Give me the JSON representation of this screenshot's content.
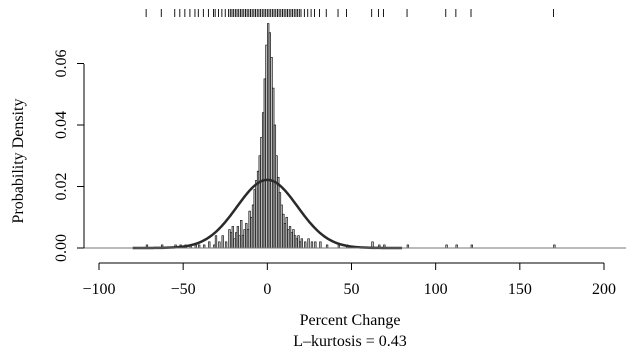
{
  "chart_data": {
    "type": "histogram",
    "xlabel": "Percent Change",
    "subtitle": "L–kurtosis = 0.43",
    "ylabel": "Probability Density",
    "xlim": [
      -110,
      210
    ],
    "ylim": [
      -0.002,
      0.076
    ],
    "xticks": [
      -100,
      -50,
      0,
      50,
      100,
      150,
      200
    ],
    "xtick_labels": [
      "−100",
      "−50",
      "0",
      "50",
      "100",
      "150",
      "200"
    ],
    "yticks": [
      0.0,
      0.02,
      0.04,
      0.06
    ],
    "ytick_labels": [
      "0.00",
      "0.02",
      "0.04",
      "0.06"
    ],
    "grid": false,
    "histogram": {
      "bin_width": 1,
      "bins": [
        [
          -72,
          0.001
        ],
        [
          -63,
          0.001
        ],
        [
          -55,
          0.001
        ],
        [
          -52,
          0.001
        ],
        [
          -49,
          0.001
        ],
        [
          -46,
          0.001
        ],
        [
          -43,
          0.001
        ],
        [
          -41,
          0.001
        ],
        [
          -38,
          0.001
        ],
        [
          -35,
          0.002
        ],
        [
          -32,
          0.001
        ],
        [
          -31,
          0.004
        ],
        [
          -29,
          0.002
        ],
        [
          -27,
          0.004
        ],
        [
          -25,
          0.002
        ],
        [
          -23,
          0.006
        ],
        [
          -22,
          0.005
        ],
        [
          -21,
          0.007
        ],
        [
          -20,
          0.003
        ],
        [
          -19,
          0.005
        ],
        [
          -18,
          0.007
        ],
        [
          -17,
          0.004
        ],
        [
          -16,
          0.009
        ],
        [
          -15,
          0.004
        ],
        [
          -14,
          0.006
        ],
        [
          -13,
          0.008
        ],
        [
          -12,
          0.006
        ],
        [
          -11,
          0.012
        ],
        [
          -10,
          0.01
        ],
        [
          -9,
          0.014
        ],
        [
          -8,
          0.019
        ],
        [
          -7,
          0.022
        ],
        [
          -6,
          0.025
        ],
        [
          -5,
          0.03
        ],
        [
          -4,
          0.036
        ],
        [
          -3,
          0.044
        ],
        [
          -2,
          0.055
        ],
        [
          -1,
          0.066
        ],
        [
          0,
          0.073
        ],
        [
          1,
          0.07
        ],
        [
          2,
          0.062
        ],
        [
          3,
          0.052
        ],
        [
          4,
          0.04
        ],
        [
          5,
          0.03
        ],
        [
          6,
          0.023
        ],
        [
          7,
          0.018
        ],
        [
          8,
          0.014
        ],
        [
          9,
          0.011
        ],
        [
          10,
          0.008
        ],
        [
          11,
          0.01
        ],
        [
          12,
          0.006
        ],
        [
          13,
          0.007
        ],
        [
          14,
          0.005
        ],
        [
          15,
          0.006
        ],
        [
          16,
          0.004
        ],
        [
          17,
          0.003
        ],
        [
          18,
          0.004
        ],
        [
          19,
          0.002
        ],
        [
          20,
          0.003
        ],
        [
          22,
          0.002
        ],
        [
          24,
          0.003
        ],
        [
          26,
          0.002
        ],
        [
          28,
          0.002
        ],
        [
          31,
          0.002
        ],
        [
          35,
          0.001
        ],
        [
          42,
          0.001
        ],
        [
          47,
          0.001
        ],
        [
          62,
          0.002
        ],
        [
          66,
          0.001
        ],
        [
          69,
          0.001
        ],
        [
          83,
          0.001
        ],
        [
          106,
          0.001
        ],
        [
          112,
          0.001
        ],
        [
          121,
          0.001
        ],
        [
          170,
          0.001
        ]
      ]
    },
    "normal_curve": {
      "mean": 0,
      "sd": 18,
      "x_range": [
        -80,
        80
      ]
    },
    "rug": [
      -72,
      -63,
      -55,
      -52,
      -49,
      -46,
      -43,
      -41,
      -38,
      -35,
      -32,
      -31,
      -29,
      -27,
      -25,
      -23,
      -22,
      -21,
      -20,
      -19,
      -18,
      -17,
      -16,
      -15,
      -14,
      -13,
      -12,
      -11,
      -10,
      -9,
      -8,
      -7,
      -6,
      -5,
      -4,
      -3,
      -2,
      -1,
      0,
      1,
      2,
      3,
      4,
      5,
      6,
      7,
      8,
      9,
      10,
      11,
      12,
      13,
      14,
      15,
      16,
      17,
      18,
      19,
      20,
      22,
      24,
      26,
      28,
      31,
      35,
      42,
      47,
      62,
      66,
      69,
      83,
      106,
      112,
      121,
      170
    ]
  }
}
